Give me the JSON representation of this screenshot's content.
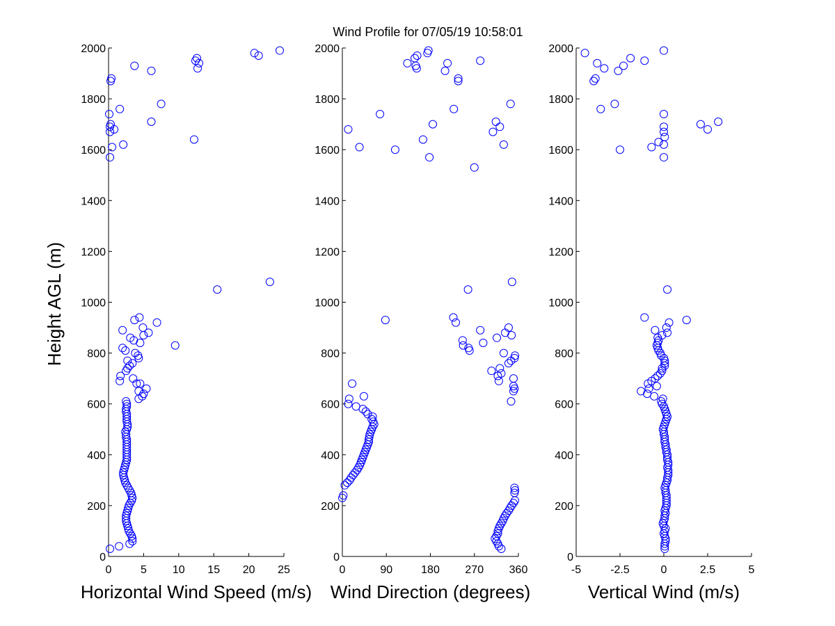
{
  "figure": {
    "title": "Wind Profile for  07/05/19 10:58:01",
    "ylabel": "Height AGL (m)"
  },
  "colors": {
    "marker": "#0000ff",
    "axis": "#000000",
    "background": "#ffffff"
  },
  "chart_data": [
    {
      "type": "scatter",
      "xlabel": "Horizontal Wind Speed (m/s)",
      "ylabel": "Height AGL (m)",
      "xlim": [
        0,
        25
      ],
      "ylim": [
        0,
        2000
      ],
      "xticks": [
        0,
        5,
        10,
        15,
        20,
        25
      ],
      "xtick_labels": [
        "0",
        "5",
        "10",
        "15",
        "20",
        "25"
      ],
      "yticks": [
        0,
        200,
        400,
        600,
        800,
        1000,
        1200,
        1400,
        1600,
        1800,
        2000
      ],
      "grid": false,
      "points": [
        [
          0.2,
          30
        ],
        [
          1.5,
          40
        ],
        [
          3,
          50
        ],
        [
          3.4,
          60
        ],
        [
          3.4,
          70
        ],
        [
          3.3,
          80
        ],
        [
          3.1,
          90
        ],
        [
          2.9,
          100
        ],
        [
          2.8,
          110
        ],
        [
          2.7,
          120
        ],
        [
          2.6,
          130
        ],
        [
          2.5,
          140
        ],
        [
          2.5,
          150
        ],
        [
          2.5,
          160
        ],
        [
          2.6,
          170
        ],
        [
          2.7,
          180
        ],
        [
          2.8,
          190
        ],
        [
          2.9,
          200
        ],
        [
          3.1,
          210
        ],
        [
          3.3,
          220
        ],
        [
          3.4,
          230
        ],
        [
          3.3,
          240
        ],
        [
          3.2,
          250
        ],
        [
          3,
          260
        ],
        [
          2.8,
          270
        ],
        [
          2.6,
          280
        ],
        [
          2.4,
          290
        ],
        [
          2.3,
          300
        ],
        [
          2.2,
          310
        ],
        [
          2.1,
          320
        ],
        [
          2.1,
          330
        ],
        [
          2.2,
          340
        ],
        [
          2.3,
          350
        ],
        [
          2.4,
          360
        ],
        [
          2.5,
          370
        ],
        [
          2.6,
          380
        ],
        [
          2.6,
          390
        ],
        [
          2.6,
          400
        ],
        [
          2.6,
          410
        ],
        [
          2.6,
          420
        ],
        [
          2.6,
          430
        ],
        [
          2.6,
          440
        ],
        [
          2.6,
          450
        ],
        [
          2.6,
          460
        ],
        [
          2.5,
          470
        ],
        [
          2.5,
          480
        ],
        [
          2.4,
          490
        ],
        [
          2.6,
          500
        ],
        [
          2.7,
          510
        ],
        [
          2.7,
          520
        ],
        [
          2.6,
          530
        ],
        [
          2.6,
          540
        ],
        [
          2.6,
          550
        ],
        [
          2.6,
          560
        ],
        [
          2.5,
          570
        ],
        [
          2.5,
          580
        ],
        [
          2.6,
          590
        ],
        [
          2.6,
          600
        ],
        [
          2.5,
          610
        ],
        [
          4.3,
          620
        ],
        [
          4.8,
          630
        ],
        [
          5,
          640
        ],
        [
          4.3,
          650
        ],
        [
          5.4,
          660
        ],
        [
          4,
          680
        ],
        [
          4.5,
          680
        ],
        [
          1.6,
          690
        ],
        [
          3.5,
          700
        ],
        [
          1.7,
          710
        ],
        [
          2.5,
          730
        ],
        [
          2.7,
          740
        ],
        [
          3,
          750
        ],
        [
          3.4,
          760
        ],
        [
          2.7,
          770
        ],
        [
          4.3,
          780
        ],
        [
          4.2,
          790
        ],
        [
          3.8,
          800
        ],
        [
          2.4,
          810
        ],
        [
          2,
          820
        ],
        [
          9.5,
          830
        ],
        [
          4.5,
          840
        ],
        [
          3.6,
          850
        ],
        [
          3.1,
          860
        ],
        [
          5,
          870
        ],
        [
          5.7,
          880
        ],
        [
          2,
          890
        ],
        [
          4.9,
          900
        ],
        [
          6.9,
          920
        ],
        [
          3.7,
          930
        ],
        [
          4.4,
          940
        ],
        [
          15.5,
          1050
        ],
        [
          23,
          1080
        ],
        [
          0.2,
          1570
        ],
        [
          2.1,
          1620
        ],
        [
          0.5,
          1610
        ],
        [
          12.2,
          1640
        ],
        [
          0.2,
          1670
        ],
        [
          0.8,
          1680
        ],
        [
          0.2,
          1690
        ],
        [
          0.3,
          1700
        ],
        [
          6.1,
          1710
        ],
        [
          0.1,
          1740
        ],
        [
          1.6,
          1760
        ],
        [
          7.5,
          1780
        ],
        [
          0.3,
          1870
        ],
        [
          0.4,
          1880
        ],
        [
          6.1,
          1910
        ],
        [
          12.7,
          1920
        ],
        [
          3.7,
          1930
        ],
        [
          12.9,
          1940
        ],
        [
          12.4,
          1950
        ],
        [
          12.6,
          1960
        ],
        [
          21.4,
          1970
        ],
        [
          20.8,
          1980
        ],
        [
          24.4,
          1990
        ]
      ]
    },
    {
      "type": "scatter",
      "xlabel": "Wind Direction (degrees)",
      "ylabel": "",
      "xlim": [
        0,
        360
      ],
      "ylim": [
        0,
        2000
      ],
      "xticks": [
        0,
        90,
        180,
        270,
        360
      ],
      "xtick_labels": [
        "0",
        "90",
        "180",
        "270",
        "360"
      ],
      "yticks": [
        0,
        200,
        400,
        600,
        800,
        1000,
        1200,
        1400,
        1600,
        1800,
        2000
      ],
      "grid": false,
      "points": [
        [
          325,
          30
        ],
        [
          320,
          40
        ],
        [
          318,
          50
        ],
        [
          315,
          60
        ],
        [
          312,
          70
        ],
        [
          315,
          80
        ],
        [
          318,
          90
        ],
        [
          318,
          100
        ],
        [
          320,
          110
        ],
        [
          322,
          120
        ],
        [
          325,
          130
        ],
        [
          328,
          140
        ],
        [
          330,
          150
        ],
        [
          333,
          160
        ],
        [
          336,
          170
        ],
        [
          340,
          180
        ],
        [
          343,
          190
        ],
        [
          346,
          200
        ],
        [
          350,
          210
        ],
        [
          353,
          220
        ],
        [
          0,
          230
        ],
        [
          2,
          240
        ],
        [
          352,
          250
        ],
        [
          353,
          260
        ],
        [
          352,
          270
        ],
        [
          5,
          280
        ],
        [
          10,
          290
        ],
        [
          15,
          300
        ],
        [
          18,
          310
        ],
        [
          22,
          320
        ],
        [
          26,
          330
        ],
        [
          30,
          340
        ],
        [
          33,
          350
        ],
        [
          36,
          360
        ],
        [
          38,
          370
        ],
        [
          40,
          380
        ],
        [
          42,
          390
        ],
        [
          44,
          400
        ],
        [
          46,
          410
        ],
        [
          48,
          420
        ],
        [
          50,
          430
        ],
        [
          52,
          440
        ],
        [
          54,
          450
        ],
        [
          54,
          460
        ],
        [
          55,
          470
        ],
        [
          56,
          480
        ],
        [
          58,
          490
        ],
        [
          60,
          500
        ],
        [
          62,
          510
        ],
        [
          65,
          520
        ],
        [
          63,
          530
        ],
        [
          60,
          540
        ],
        [
          62,
          550
        ],
        [
          52,
          560
        ],
        [
          48,
          570
        ],
        [
          42,
          580
        ],
        [
          12,
          600
        ],
        [
          28,
          590
        ],
        [
          44,
          630
        ],
        [
          345,
          610
        ],
        [
          14,
          620
        ],
        [
          350,
          650
        ],
        [
          352,
          660
        ],
        [
          350,
          670
        ],
        [
          20,
          680
        ],
        [
          320,
          690
        ],
        [
          350,
          700
        ],
        [
          318,
          710
        ],
        [
          325,
          720
        ],
        [
          305,
          730
        ],
        [
          322,
          740
        ],
        [
          340,
          760
        ],
        [
          345,
          770
        ],
        [
          352,
          780
        ],
        [
          353,
          790
        ],
        [
          330,
          800
        ],
        [
          260,
          810
        ],
        [
          258,
          820
        ],
        [
          247,
          830
        ],
        [
          288,
          840
        ],
        [
          246,
          850
        ],
        [
          316,
          860
        ],
        [
          346,
          870
        ],
        [
          282,
          890
        ],
        [
          333,
          880
        ],
        [
          340,
          900
        ],
        [
          232,
          920
        ],
        [
          88,
          930
        ],
        [
          227,
          940
        ],
        [
          257,
          1050
        ],
        [
          347,
          1080
        ],
        [
          270,
          1530
        ],
        [
          178,
          1570
        ],
        [
          35,
          1610
        ],
        [
          108,
          1600
        ],
        [
          330,
          1620
        ],
        [
          165,
          1640
        ],
        [
          308,
          1670
        ],
        [
          12,
          1680
        ],
        [
          322,
          1690
        ],
        [
          185,
          1700
        ],
        [
          314,
          1710
        ],
        [
          77,
          1740
        ],
        [
          228,
          1760
        ],
        [
          344,
          1780
        ],
        [
          237,
          1870
        ],
        [
          237,
          1880
        ],
        [
          210,
          1910
        ],
        [
          152,
          1920
        ],
        [
          150,
          1930
        ],
        [
          215,
          1940
        ],
        [
          133,
          1940
        ],
        [
          282,
          1950
        ],
        [
          148,
          1960
        ],
        [
          153,
          1970
        ],
        [
          174,
          1980
        ],
        [
          176,
          1990
        ]
      ]
    },
    {
      "type": "scatter",
      "xlabel": "Vertical Wind (m/s)",
      "ylabel": "",
      "xlim": [
        -5,
        5
      ],
      "ylim": [
        0,
        2000
      ],
      "xticks": [
        -5,
        -2.5,
        0,
        2.5,
        5
      ],
      "xtick_labels": [
        "-5",
        "-2.5",
        "0",
        "2.5",
        "5"
      ],
      "yticks": [
        0,
        200,
        400,
        600,
        800,
        1000,
        1200,
        1400,
        1600,
        1800,
        2000
      ],
      "grid": false,
      "points": [
        [
          0.05,
          30
        ],
        [
          0.05,
          40
        ],
        [
          0.05,
          50
        ],
        [
          0.1,
          60
        ],
        [
          0.1,
          70
        ],
        [
          0.05,
          80
        ],
        [
          0,
          90
        ],
        [
          0.05,
          100
        ],
        [
          0.1,
          110
        ],
        [
          0,
          120
        ],
        [
          -0.05,
          130
        ],
        [
          0,
          140
        ],
        [
          0.05,
          150
        ],
        [
          0.05,
          160
        ],
        [
          0.1,
          170
        ],
        [
          0.05,
          180
        ],
        [
          0.1,
          190
        ],
        [
          0.15,
          200
        ],
        [
          0.15,
          210
        ],
        [
          0.15,
          220
        ],
        [
          0.15,
          230
        ],
        [
          0.15,
          240
        ],
        [
          0.1,
          250
        ],
        [
          0.1,
          260
        ],
        [
          0.05,
          270
        ],
        [
          0.1,
          280
        ],
        [
          0.15,
          290
        ],
        [
          0.2,
          300
        ],
        [
          0.2,
          310
        ],
        [
          0.25,
          320
        ],
        [
          0.25,
          330
        ],
        [
          0.25,
          340
        ],
        [
          0.2,
          350
        ],
        [
          0.25,
          360
        ],
        [
          0.25,
          370
        ],
        [
          0.2,
          380
        ],
        [
          0.2,
          390
        ],
        [
          0.2,
          400
        ],
        [
          0.15,
          410
        ],
        [
          0.15,
          420
        ],
        [
          0.1,
          430
        ],
        [
          0.1,
          440
        ],
        [
          0.05,
          450
        ],
        [
          0.05,
          460
        ],
        [
          0.05,
          470
        ],
        [
          0,
          480
        ],
        [
          0,
          490
        ],
        [
          -0.05,
          500
        ],
        [
          0,
          510
        ],
        [
          0.05,
          520
        ],
        [
          0.1,
          530
        ],
        [
          0.15,
          540
        ],
        [
          0.2,
          550
        ],
        [
          0.15,
          560
        ],
        [
          0.1,
          570
        ],
        [
          0.05,
          580
        ],
        [
          0,
          590
        ],
        [
          -0.1,
          600
        ],
        [
          -0.15,
          610
        ],
        [
          -0.05,
          620
        ],
        [
          -0.55,
          630
        ],
        [
          -0.95,
          640
        ],
        [
          -1.3,
          650
        ],
        [
          -0.85,
          660
        ],
        [
          -0.4,
          670
        ],
        [
          -0.9,
          680
        ],
        [
          -0.7,
          690
        ],
        [
          -0.5,
          700
        ],
        [
          -0.35,
          710
        ],
        [
          -0.2,
          720
        ],
        [
          -0.1,
          730
        ],
        [
          -0.1,
          740
        ],
        [
          0.05,
          750
        ],
        [
          0.05,
          760
        ],
        [
          0.05,
          770
        ],
        [
          0,
          780
        ],
        [
          -0.15,
          790
        ],
        [
          -0.2,
          800
        ],
        [
          -0.3,
          810
        ],
        [
          -0.35,
          820
        ],
        [
          -0.4,
          830
        ],
        [
          -0.35,
          840
        ],
        [
          -0.3,
          850
        ],
        [
          -0.35,
          860
        ],
        [
          -0.1,
          870
        ],
        [
          0.2,
          880
        ],
        [
          -0.5,
          890
        ],
        [
          0.15,
          900
        ],
        [
          0.3,
          920
        ],
        [
          1.3,
          930
        ],
        [
          -1.1,
          940
        ],
        [
          0.2,
          1050
        ],
        [
          0,
          1570
        ],
        [
          -2.5,
          1600
        ],
        [
          -0.7,
          1610
        ],
        [
          0,
          1620
        ],
        [
          -0.3,
          1630
        ],
        [
          0.05,
          1650
        ],
        [
          0,
          1670
        ],
        [
          0,
          1690
        ],
        [
          2.5,
          1680
        ],
        [
          2.1,
          1700
        ],
        [
          3.1,
          1710
        ],
        [
          0,
          1740
        ],
        [
          -3.6,
          1760
        ],
        [
          -2.8,
          1780
        ],
        [
          -4,
          1870
        ],
        [
          -3.9,
          1880
        ],
        [
          -2.6,
          1910
        ],
        [
          -3.4,
          1920
        ],
        [
          -2.3,
          1930
        ],
        [
          -3.8,
          1940
        ],
        [
          -1.1,
          1950
        ],
        [
          -1.9,
          1960
        ],
        [
          -4.5,
          1980
        ],
        [
          0,
          1990
        ]
      ]
    }
  ]
}
